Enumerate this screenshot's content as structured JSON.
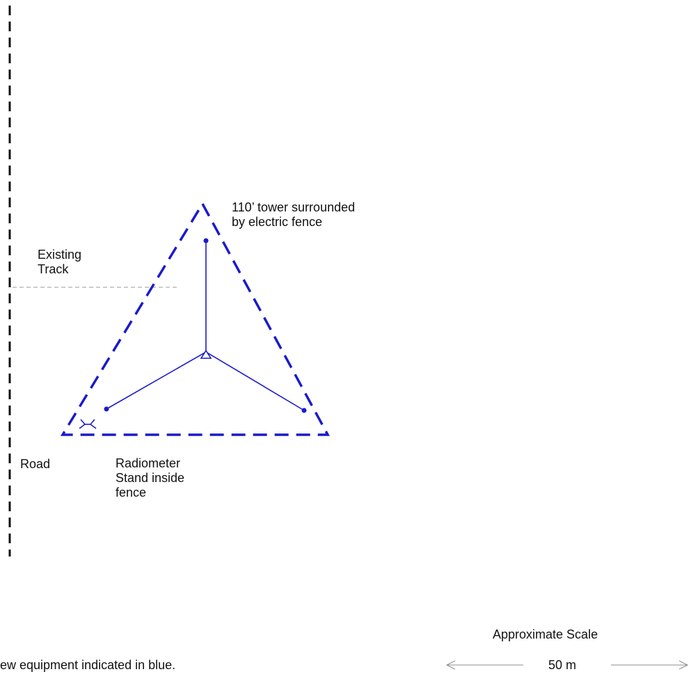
{
  "colors": {
    "new_equipment": "#1a1acc",
    "existing": "#111111",
    "track": "#9a9a9a"
  },
  "labels": {
    "tower_line1": "110’ tower surrounded",
    "tower_line2": "by electric fence",
    "track_line1": "Existing",
    "track_line2": "Track",
    "road": "Road",
    "radiometer_line1": "Radiometer",
    "radiometer_line2": "Stand inside",
    "radiometer_line3": "fence",
    "note": "ew equipment indicated in blue.",
    "scale_title": "Approximate Scale",
    "scale_value": "50 m"
  },
  "icons": {
    "radiometer_stand": "radiometer-stand-icon",
    "tower_base": "tower-base-icon"
  }
}
